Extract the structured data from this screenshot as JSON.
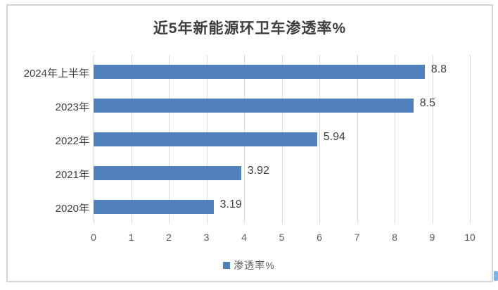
{
  "title": "近5年新能源环卫车渗透率%",
  "legend": {
    "label": "渗透率%"
  },
  "colors": {
    "bar": "#5181bd",
    "gridline": "#d9d9d9",
    "frame_border": "#d3d3d3",
    "title_text": "#3f3f3f",
    "label_text": "#404040",
    "tick_text": "#595959"
  },
  "chart_data": {
    "type": "bar",
    "orientation": "horizontal",
    "title": "近5年新能源环卫车渗透率%",
    "categories": [
      "2024年上半年",
      "2023年",
      "2022年",
      "2021年",
      "2020年"
    ],
    "values": [
      8.8,
      8.5,
      5.94,
      3.92,
      3.19
    ],
    "data_labels": [
      "8.8",
      "8.5",
      "5.94",
      "3.92",
      "3.19"
    ],
    "series_name": "渗透率%",
    "xlabel": "",
    "ylabel": "",
    "xlim": [
      0,
      10
    ],
    "xticks": [
      0,
      1,
      2,
      3,
      4,
      5,
      6,
      7,
      8,
      9,
      10
    ],
    "grid": true,
    "legend_position": "bottom"
  }
}
